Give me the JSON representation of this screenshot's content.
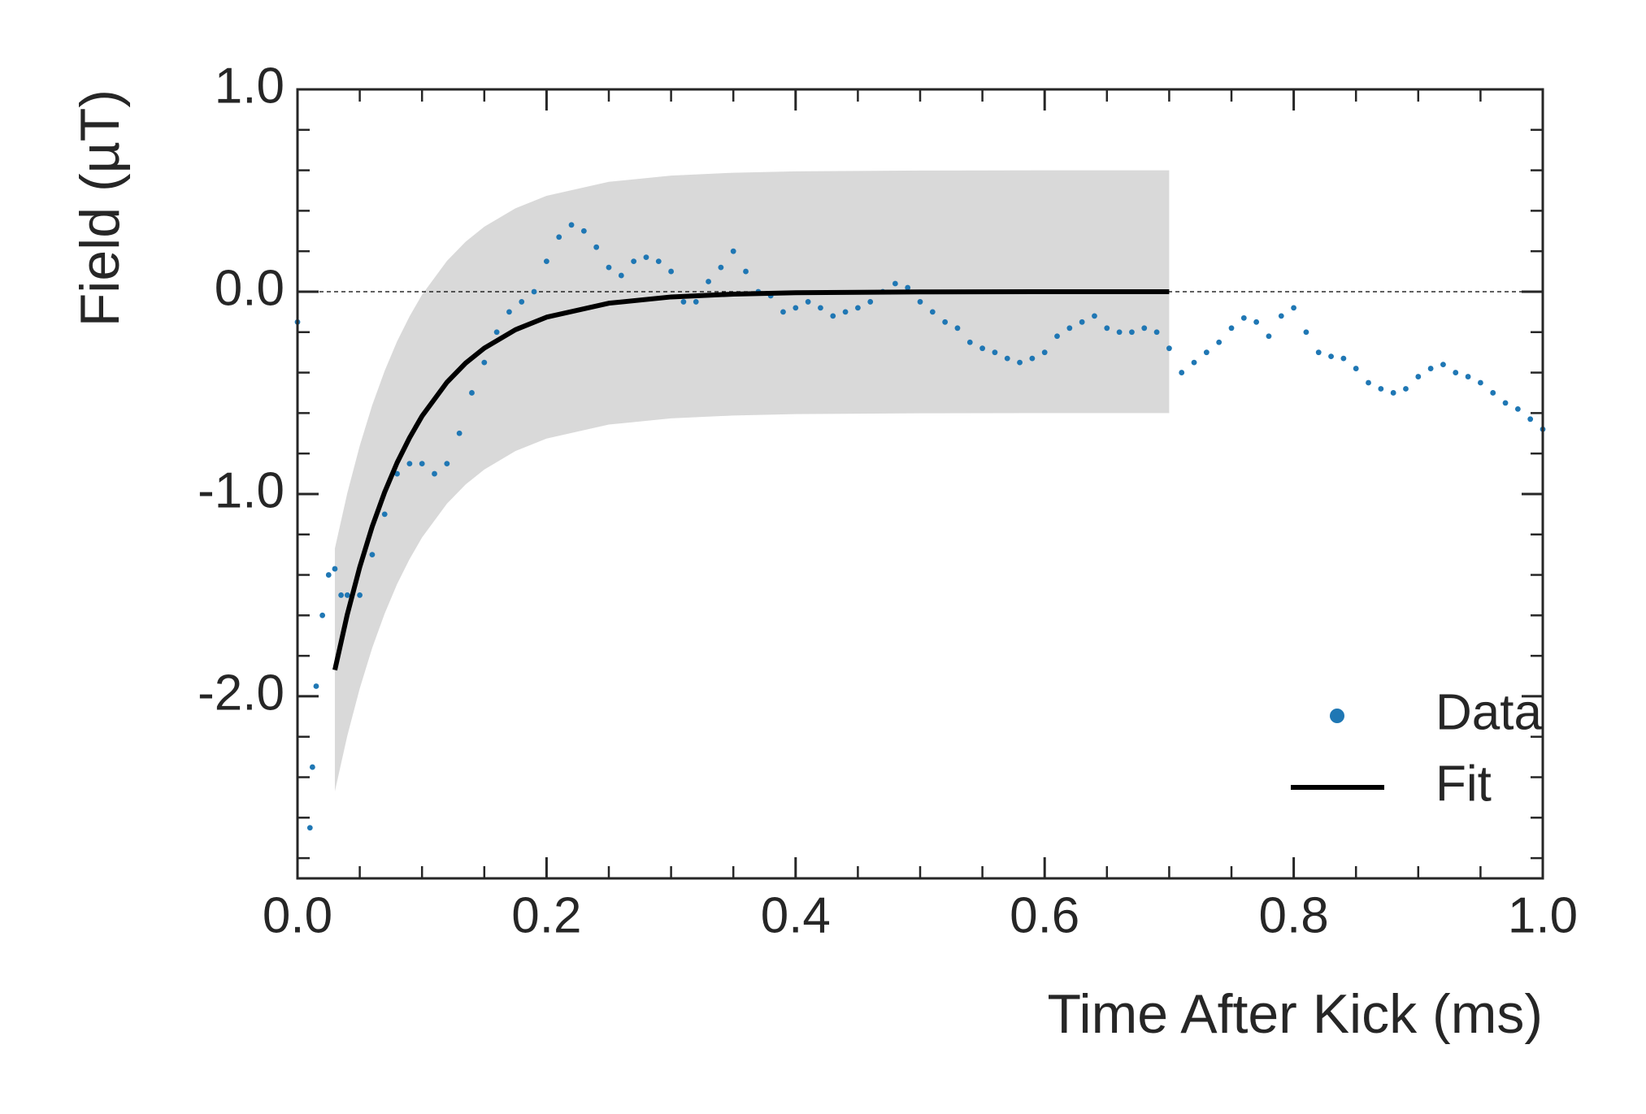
{
  "chart_data": {
    "type": "scatter",
    "xlabel": "Time After Kick (ms)",
    "ylabel": "Field (µT)",
    "xlim": [
      0,
      1
    ],
    "ylim": [
      -2.9,
      1.0
    ],
    "xticks": [
      {
        "value": 0,
        "label": "0.0"
      },
      {
        "value": 0.2,
        "label": "0.2"
      },
      {
        "value": 0.4,
        "label": "0.4"
      },
      {
        "value": 0.6,
        "label": "0.6"
      },
      {
        "value": 0.8,
        "label": "0.8"
      },
      {
        "value": 1,
        "label": "1.0"
      }
    ],
    "yticks": [
      {
        "value": -2,
        "label": "-2.0"
      },
      {
        "value": -1,
        "label": "-1.0"
      },
      {
        "value": 0,
        "label": "0.0"
      },
      {
        "value": 1,
        "label": "1.0"
      }
    ],
    "hline": 0,
    "legend": "lower right",
    "series": [
      {
        "name": "Data",
        "color": "#1f77b4",
        "x": [
          0,
          0.01,
          0.012,
          0.015,
          0.02,
          0.025,
          0.03,
          0.035,
          0.04,
          0.05,
          0.06,
          0.07,
          0.08,
          0.09,
          0.1,
          0.11,
          0.12,
          0.13,
          0.14,
          0.15,
          0.16,
          0.17,
          0.18,
          0.19,
          0.2,
          0.21,
          0.22,
          0.23,
          0.24,
          0.25,
          0.26,
          0.27,
          0.28,
          0.29,
          0.3,
          0.31,
          0.32,
          0.33,
          0.34,
          0.35,
          0.36,
          0.37,
          0.38,
          0.39,
          0.4,
          0.41,
          0.42,
          0.43,
          0.44,
          0.45,
          0.46,
          0.47,
          0.48,
          0.49,
          0.5,
          0.51,
          0.52,
          0.53,
          0.54,
          0.55,
          0.56,
          0.57,
          0.58,
          0.59,
          0.6,
          0.61,
          0.62,
          0.63,
          0.64,
          0.65,
          0.66,
          0.67,
          0.68,
          0.69,
          0.7,
          0.71,
          0.72,
          0.73,
          0.74,
          0.75,
          0.76,
          0.77,
          0.78,
          0.79,
          0.8,
          0.81,
          0.82,
          0.83,
          0.84,
          0.85,
          0.86,
          0.87,
          0.88,
          0.89,
          0.9,
          0.91,
          0.92,
          0.93,
          0.94,
          0.95,
          0.96,
          0.97,
          0.98,
          0.99,
          1.0
        ],
        "values": [
          -0.15,
          -2.65,
          -2.35,
          -1.95,
          -1.6,
          -1.4,
          -1.37,
          -1.5,
          -1.5,
          -1.5,
          -1.3,
          -1.1,
          -0.9,
          -0.85,
          -0.85,
          -0.9,
          -0.85,
          -0.7,
          -0.5,
          -0.35,
          -0.2,
          -0.1,
          -0.05,
          0.0,
          0.15,
          0.27,
          0.33,
          0.3,
          0.22,
          0.12,
          0.08,
          0.15,
          0.17,
          0.15,
          0.1,
          -0.05,
          -0.05,
          0.05,
          0.12,
          0.2,
          0.1,
          0.0,
          -0.02,
          -0.1,
          -0.08,
          -0.05,
          -0.08,
          -0.12,
          -0.1,
          -0.08,
          -0.05,
          0.0,
          0.04,
          0.02,
          -0.05,
          -0.1,
          -0.15,
          -0.18,
          -0.25,
          -0.28,
          -0.3,
          -0.33,
          -0.35,
          -0.33,
          -0.3,
          -0.22,
          -0.18,
          -0.15,
          -0.12,
          -0.18,
          -0.2,
          -0.2,
          -0.18,
          -0.2,
          -0.28,
          -0.4,
          -0.35,
          -0.3,
          -0.25,
          -0.18,
          -0.13,
          -0.15,
          -0.22,
          -0.12,
          -0.08,
          -0.2,
          -0.3,
          -0.32,
          -0.33,
          -0.38,
          -0.45,
          -0.48,
          -0.5,
          -0.48,
          -0.42,
          -0.38,
          -0.36,
          -0.4,
          -0.42,
          -0.45,
          -0.5,
          -0.55,
          -0.58,
          -0.63,
          -0.68
        ]
      },
      {
        "name": "Fit",
        "color": "#000000",
        "type": "line",
        "x": [
          0.03,
          0.04,
          0.05,
          0.06,
          0.07,
          0.08,
          0.09,
          0.1,
          0.12,
          0.135,
          0.15,
          0.175,
          0.2,
          0.25,
          0.3,
          0.35,
          0.4,
          0.5,
          0.6,
          0.7
        ],
        "values": [
          -1.87,
          -1.595,
          -1.361,
          -1.161,
          -0.991,
          -0.845,
          -0.722,
          -0.615,
          -0.448,
          -0.353,
          -0.279,
          -0.188,
          -0.126,
          -0.057,
          -0.026,
          -0.012,
          -0.005,
          -0.001,
          0,
          0
        ]
      }
    ],
    "band": {
      "color": "#d9d9d9",
      "upper": [
        -1.27,
        -0.995,
        -0.761,
        -0.561,
        -0.391,
        -0.245,
        -0.122,
        -0.015,
        0.152,
        0.247,
        0.321,
        0.412,
        0.474,
        0.543,
        0.574,
        0.588,
        0.595,
        0.599,
        0.6,
        0.6
      ],
      "lower": [
        -2.47,
        -2.195,
        -1.961,
        -1.761,
        -1.591,
        -1.445,
        -1.322,
        -1.215,
        -1.048,
        -0.953,
        -0.879,
        -0.788,
        -0.726,
        -0.657,
        -0.626,
        -0.612,
        -0.605,
        -0.601,
        -0.6,
        -0.6
      ]
    }
  }
}
